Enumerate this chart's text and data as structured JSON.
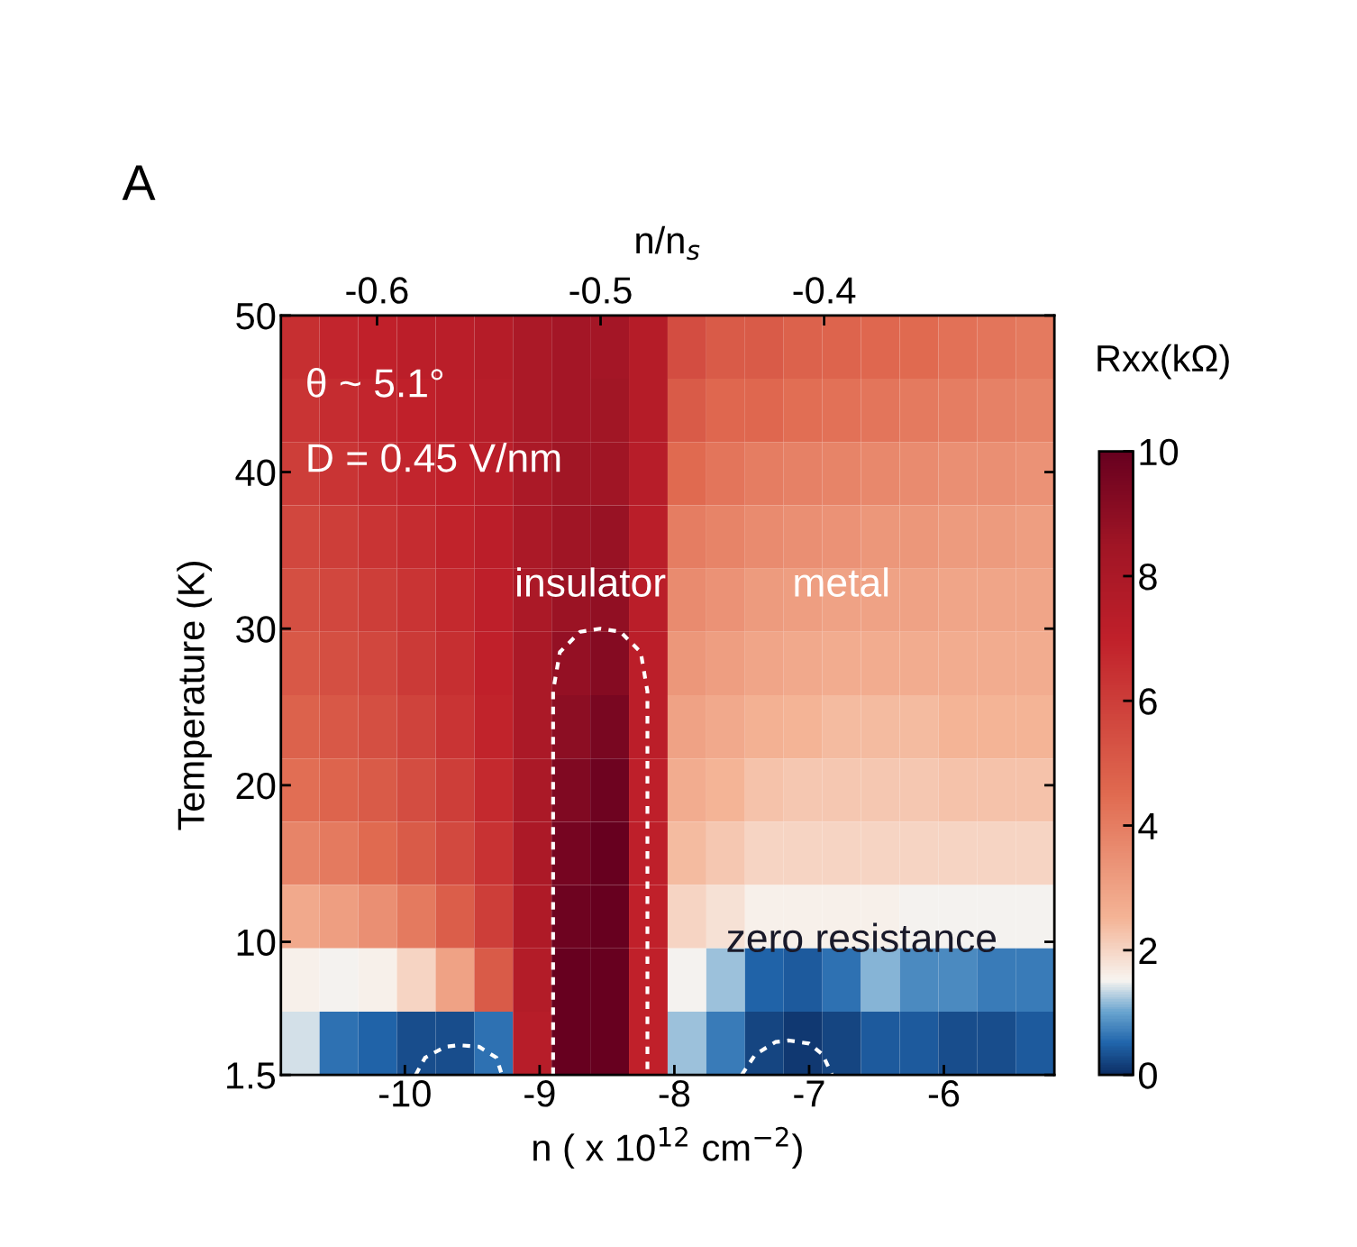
{
  "chart_data": {
    "type": "heatmap",
    "xlabel": "n ( x 10$^{12}$ cm$^{−2}$)",
    "x2label": "n/n$_{s}$",
    "ylabel": "Temperature (K)",
    "clabel": "Rxx(kΩ)",
    "xlim": [
      -10.92,
      -5.18
    ],
    "xticks": [
      -10,
      -9,
      -8,
      -7,
      -6
    ],
    "x2lim": [
      -0.643,
      -0.297
    ],
    "x2ticks": [
      -0.6,
      -0.5,
      -0.4
    ],
    "ylim": [
      1.5,
      50
    ],
    "yticks": [
      1.5,
      10,
      20,
      30,
      40,
      50
    ],
    "clim": [
      0,
      10
    ],
    "cticks": [
      0,
      2,
      4,
      6,
      8,
      10
    ],
    "cells": [
      [
        6.5,
        6.8,
        7,
        7.2,
        7.3,
        7.5,
        8,
        8.3,
        8.3,
        7.5,
        5.5,
        5,
        5,
        4.8,
        4.7,
        4.6,
        4.5,
        4.3,
        4.2,
        4.1
      ],
      [
        6.3,
        6.6,
        6.8,
        7,
        7.2,
        7.4,
        8,
        8.3,
        8.4,
        7.5,
        5,
        4.6,
        4.6,
        4.4,
        4.3,
        4.2,
        4.1,
        4,
        3.9,
        3.8
      ],
      [
        6,
        6.3,
        6.6,
        6.8,
        7,
        7.3,
        8,
        8.4,
        8.5,
        7.4,
        4.5,
        4.2,
        4,
        3.9,
        3.8,
        3.7,
        3.6,
        3.5,
        3.5,
        3.4
      ],
      [
        5.7,
        6,
        6.3,
        6.6,
        6.9,
        7.2,
        8,
        8.5,
        8.7,
        7.3,
        4,
        3.8,
        3.6,
        3.5,
        3.4,
        3.3,
        3.3,
        3.2,
        3.2,
        3.1
      ],
      [
        5.4,
        5.7,
        6,
        6.3,
        6.7,
        7.1,
        8,
        8.6,
        8.9,
        7.3,
        3.6,
        3.4,
        3.2,
        3.1,
        3,
        3,
        3,
        2.9,
        2.9,
        2.9
      ],
      [
        5.1,
        5.4,
        5.7,
        6.1,
        6.5,
        7,
        8,
        8.8,
        9.2,
        7.2,
        3.3,
        3.1,
        2.9,
        2.8,
        2.7,
        2.7,
        2.7,
        2.7,
        2.7,
        2.7
      ],
      [
        4.8,
        5.1,
        5.4,
        5.8,
        6.3,
        6.9,
        8,
        9,
        9.5,
        7.2,
        3,
        2.8,
        2.6,
        2.5,
        2.4,
        2.4,
        2.4,
        2.5,
        2.5,
        2.5
      ],
      [
        4.4,
        4.7,
        5,
        5.5,
        6,
        6.7,
        8,
        9.3,
        9.8,
        7.1,
        2.7,
        2.5,
        2.3,
        2.2,
        2.2,
        2.2,
        2.2,
        2.3,
        2.3,
        2.3
      ],
      [
        3.8,
        4.1,
        4.5,
        5,
        5.6,
        6.4,
        7.9,
        9.6,
        10,
        7.1,
        2.4,
        2.2,
        2,
        2,
        2,
        2,
        2,
        2,
        2,
        2
      ],
      [
        2.8,
        3.1,
        3.5,
        4.1,
        4.9,
        6,
        7.8,
        9.8,
        10,
        7,
        2,
        1.8,
        1.6,
        1.6,
        1.6,
        1.6,
        1.5,
        1.5,
        1.5,
        1.5
      ],
      [
        1.6,
        1.5,
        1.6,
        2,
        3,
        5,
        7.6,
        10,
        10,
        7,
        1.5,
        1.2,
        0.5,
        0.4,
        0.6,
        1.1,
        0.8,
        0.8,
        0.7,
        0.7
      ],
      [
        1.4,
        0.6,
        0.5,
        0.3,
        0.3,
        0.6,
        7.4,
        10,
        10,
        7,
        1.2,
        0.7,
        0.2,
        0.1,
        0.2,
        0.4,
        0.4,
        0.3,
        0.3,
        0.4
      ]
    ],
    "series": [
      {
        "type": "line",
        "color": "#ffffff",
        "line_style": "dashed",
        "x": [
          -8.9,
          -8.9,
          -8.85,
          -8.7,
          -8.55,
          -8.4,
          -8.25,
          -8.2,
          -8.2
        ],
        "values": [
          1.5,
          26,
          28.5,
          29.8,
          30,
          29.8,
          28.5,
          26,
          1.5
        ]
      },
      {
        "type": "line",
        "color": "#ffffff",
        "line_style": "dashed",
        "x": [
          -9.92,
          -9.85,
          -9.7,
          -9.6,
          -9.45,
          -9.32,
          -9.28
        ],
        "values": [
          1.5,
          2.6,
          3.3,
          3.4,
          3.3,
          2.6,
          1.5
        ]
      },
      {
        "type": "line",
        "color": "#ffffff",
        "line_style": "dashed",
        "x": [
          -7.5,
          -7.4,
          -7.25,
          -7.15,
          -7.0,
          -6.9,
          -6.83
        ],
        "values": [
          1.5,
          2.8,
          3.6,
          3.7,
          3.5,
          2.8,
          1.5
        ]
      }
    ],
    "annotations": [
      "A",
      "θ ~ 5.1°",
      "D = 0.45 V/nm",
      "insulator",
      "metal",
      "zero resistance"
    ]
  }
}
